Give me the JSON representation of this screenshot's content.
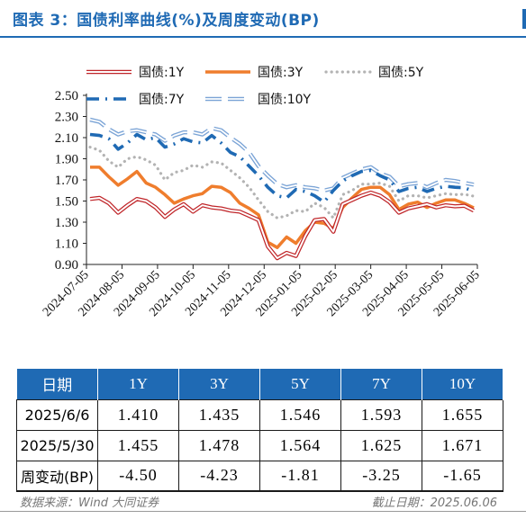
{
  "header": {
    "title": "图表 3：国债利率曲线(%)及周度变动(BP)"
  },
  "colors": {
    "y1": "#c0262a",
    "y3": "#ef7d2d",
    "y5": "#b3b3b3",
    "y7": "#1f6ab4",
    "y10": "#7ba4d6",
    "accent": "#1f6ab4"
  },
  "chart_data": {
    "type": "line",
    "x_ticks": [
      "2024-07-05",
      "2024-08-05",
      "2024-09-05",
      "2024-10-05",
      "2024-11-05",
      "2024-12-05",
      "2025-01-05",
      "2025-02-05",
      "2025-03-05",
      "2025-04-05",
      "2025-05-05",
      "2025-06-05"
    ],
    "ylim": [
      0.9,
      2.5
    ],
    "y_ticks": [
      "2.50",
      "2.30",
      "2.10",
      "1.90",
      "1.70",
      "1.50",
      "1.30",
      "1.10",
      "0.90"
    ],
    "grid": false,
    "legend_position": "top",
    "series": [
      {
        "name": "国债:1Y",
        "style": "double",
        "color": "#c0262a",
        "values": [
          1.52,
          1.53,
          1.48,
          1.39,
          1.46,
          1.52,
          1.5,
          1.44,
          1.35,
          1.42,
          1.47,
          1.4,
          1.46,
          1.44,
          1.43,
          1.41,
          1.4,
          1.36,
          1.32,
          1.07,
          0.96,
          1.01,
          0.98,
          1.17,
          1.32,
          1.33,
          1.21,
          1.47,
          1.51,
          1.55,
          1.58,
          1.55,
          1.49,
          1.39,
          1.43,
          1.45,
          1.47,
          1.44,
          1.46,
          1.45,
          1.455,
          1.41
        ]
      },
      {
        "name": "国债:3Y",
        "style": "thick",
        "color": "#ef7d2d",
        "values": [
          1.82,
          1.82,
          1.73,
          1.65,
          1.71,
          1.78,
          1.67,
          1.63,
          1.56,
          1.48,
          1.52,
          1.55,
          1.57,
          1.64,
          1.63,
          1.58,
          1.48,
          1.43,
          1.37,
          1.11,
          1.06,
          1.16,
          1.1,
          1.22,
          1.3,
          1.29,
          1.24,
          1.44,
          1.53,
          1.61,
          1.63,
          1.63,
          1.56,
          1.42,
          1.47,
          1.49,
          1.44,
          1.48,
          1.51,
          1.51,
          1.478,
          1.435
        ]
      },
      {
        "name": "国债:5Y",
        "style": "dotted",
        "color": "#b3b3b3",
        "values": [
          2.01,
          1.98,
          1.88,
          1.82,
          1.9,
          1.92,
          1.89,
          1.84,
          1.7,
          1.77,
          1.79,
          1.84,
          1.82,
          1.87,
          1.86,
          1.79,
          1.72,
          1.63,
          1.51,
          1.4,
          1.34,
          1.36,
          1.41,
          1.4,
          1.48,
          1.44,
          1.34,
          1.56,
          1.6,
          1.66,
          1.66,
          1.67,
          1.64,
          1.5,
          1.55,
          1.55,
          1.53,
          1.55,
          1.57,
          1.56,
          1.564,
          1.546
        ]
      },
      {
        "name": "国债:7Y",
        "style": "dashdot",
        "color": "#1f6ab4",
        "values": [
          2.13,
          2.12,
          2.09,
          1.99,
          2.05,
          2.13,
          2.08,
          2.1,
          2.01,
          2.04,
          2.09,
          2.06,
          2.05,
          2.12,
          2.05,
          1.96,
          1.92,
          1.83,
          1.74,
          1.63,
          1.55,
          1.53,
          1.61,
          1.59,
          1.55,
          1.49,
          1.6,
          1.69,
          1.74,
          1.78,
          1.79,
          1.74,
          1.7,
          1.59,
          1.62,
          1.63,
          1.59,
          1.62,
          1.64,
          1.63,
          1.625,
          1.593
        ]
      },
      {
        "name": "国债:10Y",
        "style": "hollow",
        "color": "#7ba4d6",
        "values": [
          2.27,
          2.25,
          2.18,
          2.13,
          2.16,
          2.17,
          2.15,
          2.13,
          2.07,
          2.12,
          2.15,
          2.15,
          2.13,
          2.19,
          2.17,
          2.1,
          2.04,
          1.96,
          1.83,
          1.74,
          1.66,
          1.63,
          1.65,
          1.63,
          1.62,
          1.6,
          1.62,
          1.72,
          1.76,
          1.8,
          1.82,
          1.76,
          1.73,
          1.64,
          1.66,
          1.67,
          1.63,
          1.67,
          1.7,
          1.69,
          1.671,
          1.655
        ]
      }
    ]
  },
  "table": {
    "headers": [
      "日期",
      "1Y",
      "3Y",
      "5Y",
      "7Y",
      "10Y"
    ],
    "rows": [
      [
        "2025/6/6",
        "1.410",
        "1.435",
        "1.546",
        "1.593",
        "1.655"
      ],
      [
        "2025/5/30",
        "1.455",
        "1.478",
        "1.564",
        "1.625",
        "1.671"
      ],
      [
        "周变动(BP)",
        "-4.50",
        "-4.23",
        "-1.81",
        "-3.25",
        "-1.65"
      ]
    ]
  },
  "footer": {
    "source": "数据来源：Wind 大同证券",
    "date": "截止日期：2025.06.06"
  }
}
